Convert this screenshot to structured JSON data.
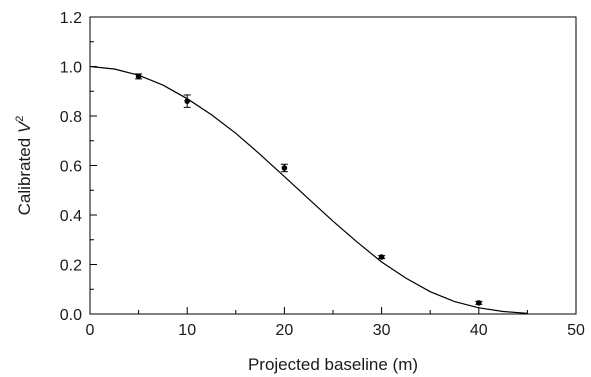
{
  "chart_data": {
    "type": "scatter",
    "xlabel": "Projected baseline (m)",
    "ylabel_prefix": "Calibrated ",
    "ylabel_var": "V",
    "ylabel_sup": "2",
    "xlim": [
      0,
      50
    ],
    "ylim": [
      0,
      1.2
    ],
    "x_ticks": [
      "0",
      "10",
      "20",
      "30",
      "40",
      "50"
    ],
    "y_ticks": [
      "0.0",
      "0.2",
      "0.4",
      "0.6",
      "0.8",
      "1.0",
      "1.2"
    ],
    "grid": false,
    "points": [
      {
        "x": 5,
        "y": 0.96,
        "err": 0.01
      },
      {
        "x": 10,
        "y": 0.86,
        "err": 0.025
      },
      {
        "x": 20,
        "y": 0.59,
        "err": 0.015
      },
      {
        "x": 30,
        "y": 0.23,
        "err": 0.006
      },
      {
        "x": 40,
        "y": 0.045,
        "err": 0.006
      }
    ],
    "fit_curve": {
      "x": [
        0,
        2.5,
        5,
        7.5,
        10,
        12.5,
        15,
        17.5,
        20,
        22.5,
        25,
        27.5,
        30,
        32.5,
        35,
        37.5,
        40,
        42.5,
        45
      ],
      "y": [
        1.0,
        0.99,
        0.965,
        0.925,
        0.87,
        0.805,
        0.73,
        0.645,
        0.555,
        0.465,
        0.375,
        0.29,
        0.21,
        0.145,
        0.09,
        0.05,
        0.025,
        0.01,
        0.003
      ]
    }
  }
}
